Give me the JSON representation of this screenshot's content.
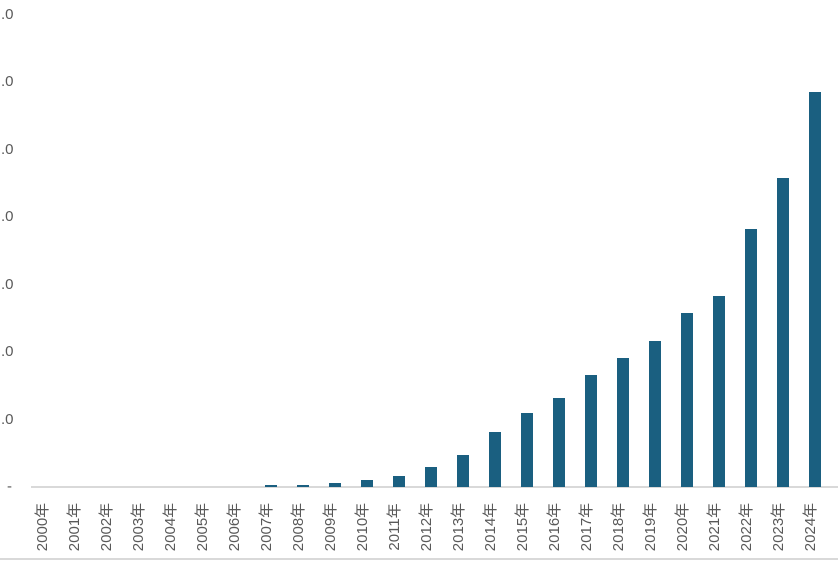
{
  "chart_data": {
    "type": "bar",
    "title": "",
    "xlabel": "",
    "ylabel": "",
    "categories": [
      "2000年",
      "2001年",
      "2002年",
      "2003年",
      "2004年",
      "2005年",
      "2006年",
      "2007年",
      "2008年",
      "2009年",
      "2010年",
      "2011年",
      "2012年",
      "2013年",
      "2014年",
      "2015年",
      "2016年",
      "2017年",
      "2018年",
      "2019年",
      "2020年",
      "2021年",
      "2022年",
      "2023年",
      "2024年"
    ],
    "values": [
      0,
      0,
      0,
      0,
      0,
      0,
      0,
      0.03,
      0.03,
      0.06,
      0.1,
      0.16,
      0.3,
      0.47,
      0.82,
      1.1,
      1.32,
      1.66,
      1.91,
      2.17,
      2.58,
      2.83,
      3.83,
      4.58,
      5.86
    ],
    "ylim": [
      0,
      7
    ],
    "y_tick_labels": [
      ".0",
      ".0",
      ".0",
      ".0",
      ".0",
      ".0",
      ".0",
      "-"
    ],
    "y_tick_note": "numeric portion of y-axis labels is cut off at left image edge; only '.0' suffixes and '-' (zero) are visible",
    "grid": false,
    "legend": false,
    "bar_color": "#1a5f80",
    "axis_line_color": "#d9d9d9",
    "tick_label_color": "#595959",
    "background_color": "#ffffff"
  }
}
